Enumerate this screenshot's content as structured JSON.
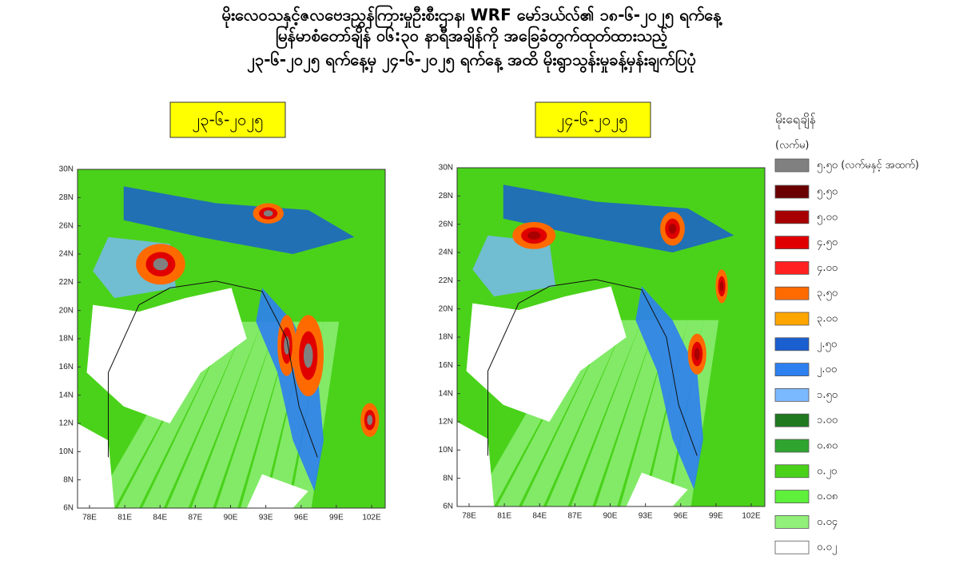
{
  "header": {
    "lines": [
      "မိုးလေဝသနှင့်ဇလဗေဒညွှန်ကြားမှုဦးစီးဌာန၊ WRF မော်ဒယ်လ်၏ ၁၈-၆-၂၀၂၅ ရက်နေ့",
      "မြန်မာစံတော်ချိန် ၀၆:၃၀ နာရီအချိန်ကို အခြေခံတွက်ထုတ်ထားသည့်",
      "၂၃-၆-၂၀၂၅ ရက်နေ့မှ ၂၄-၆-၂၀၂၅ ရက်နေ့ အထိ မိုးရွာသွန်းမှုခန့်မှန်းချက်ပြပုံ"
    ]
  },
  "maps": [
    {
      "date_label": "၂၃-၆-၂၀၂၅"
    },
    {
      "date_label": "၂၄-၆-၂၀၂၅"
    }
  ],
  "axes": {
    "lat_labels": [
      "30N",
      "28N",
      "26N",
      "24N",
      "22N",
      "20N",
      "18N",
      "16N",
      "14N",
      "12N",
      "10N",
      "8N",
      "6N"
    ],
    "lon_labels": [
      "78E",
      "81E",
      "84E",
      "87E",
      "90E",
      "93E",
      "96E",
      "99E",
      "102E"
    ]
  },
  "legend": {
    "title": "မိုးရေချိန်",
    "unit": "(လက်မ)",
    "items": [
      {
        "label": "၅.၅၀ (လက်မနှင့် အထက်)",
        "color": "#808080"
      },
      {
        "label": "၅.၅၀",
        "color": "#6b0000"
      },
      {
        "label": "၅.၀၀",
        "color": "#a80000"
      },
      {
        "label": "၄.၅၀",
        "color": "#e00000"
      },
      {
        "label": "၄.၀၀",
        "color": "#ff2020"
      },
      {
        "label": "၃.၅၀",
        "color": "#ff6a00"
      },
      {
        "label": "၃.၀၀",
        "color": "#ffa500"
      },
      {
        "label": "၂.၅၀",
        "color": "#1a5fd0"
      },
      {
        "label": "၂.၀၀",
        "color": "#2e7ff0"
      },
      {
        "label": "၁.၅၀",
        "color": "#7ab8ff"
      },
      {
        "label": "၁.၀၀",
        "color": "#1f7a1f"
      },
      {
        "label": "၀.၈၀",
        "color": "#2fa52f"
      },
      {
        "label": "၀.၂၀",
        "color": "#4ad21a"
      },
      {
        "label": "၀.၀၈",
        "color": "#5ef03a"
      },
      {
        "label": "၀.၀၄",
        "color": "#90f07a"
      },
      {
        "label": "၀.၀၂",
        "color": "#ffffff"
      }
    ]
  }
}
